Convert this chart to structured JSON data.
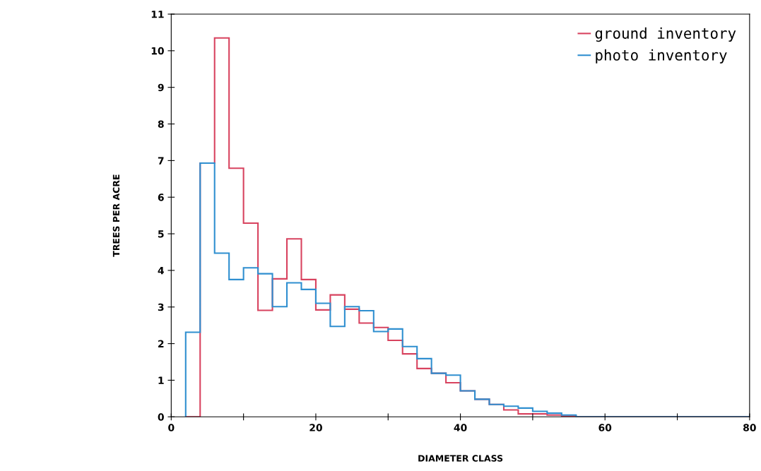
{
  "chart_data": {
    "type": "histogram",
    "xlabel": "DIAMETER CLASS",
    "ylabel": "TREES PER ACRE",
    "bins": [
      2,
      4,
      6,
      8,
      10,
      12,
      14,
      16,
      18,
      20,
      22,
      24,
      26,
      28,
      30,
      32,
      34,
      36,
      38,
      40,
      42,
      44,
      46,
      48,
      50,
      52,
      54,
      56,
      58,
      60,
      62,
      64,
      66,
      68,
      70,
      72,
      74,
      76,
      78,
      80
    ],
    "series": [
      {
        "name": "ground inventory",
        "color": "#d8435f",
        "values": [
          0,
          6.93,
          10.35,
          6.79,
          5.29,
          2.91,
          3.77,
          4.86,
          3.75,
          2.92,
          3.33,
          2.94,
          2.56,
          2.44,
          2.09,
          1.72,
          1.32,
          1.19,
          0.93,
          0.71,
          0.48,
          0.34,
          0.19,
          0.08,
          0.08,
          0.05,
          0.02,
          0,
          0,
          0,
          0,
          0,
          0,
          0,
          0,
          0,
          0,
          0,
          0
        ]
      },
      {
        "name": "photo inventory",
        "color": "#2f8fd0",
        "values": [
          2.31,
          6.93,
          4.47,
          3.75,
          4.07,
          3.91,
          3.01,
          3.66,
          3.48,
          3.1,
          2.47,
          3.01,
          2.9,
          2.33,
          2.4,
          1.92,
          1.59,
          1.19,
          1.14,
          0.71,
          0.48,
          0.34,
          0.29,
          0.24,
          0.15,
          0.1,
          0.05,
          0,
          0,
          0,
          0,
          0,
          0,
          0,
          0,
          0,
          0,
          0,
          0
        ]
      }
    ],
    "xlim": [
      0,
      80
    ],
    "ylim": [
      0,
      11
    ],
    "xticks": [
      0,
      {
        "value": 10,
        "label": null
      },
      20,
      {
        "value": 30,
        "label": null
      },
      40,
      {
        "value": 50,
        "label": null
      },
      60,
      {
        "value": 70,
        "label": null
      },
      80
    ],
    "yticks": [
      0,
      1,
      2,
      3,
      4,
      5,
      6,
      7,
      8,
      9,
      10,
      11
    ],
    "grid": false,
    "legend": "top right"
  }
}
